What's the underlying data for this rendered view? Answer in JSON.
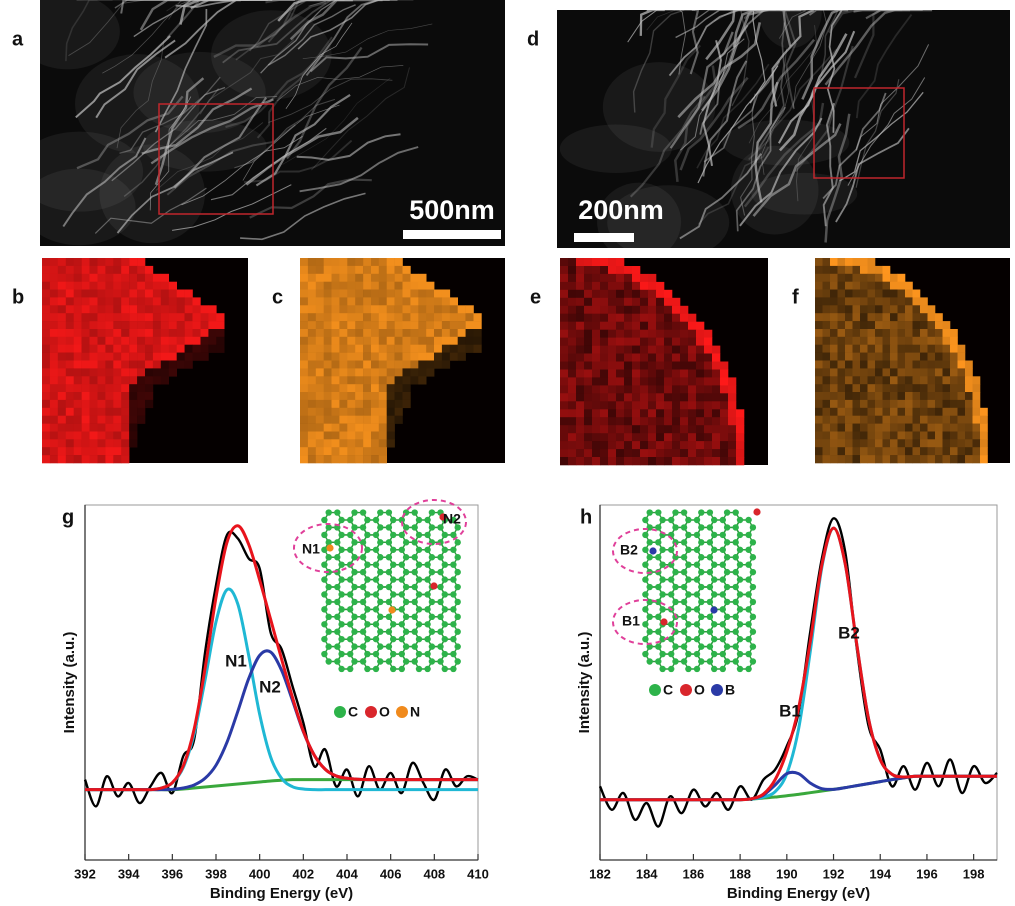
{
  "photos": [
    {
      "label": "a",
      "scale": "500nm"
    },
    {
      "label": "d",
      "scale": "200nm"
    }
  ],
  "maps": [
    {
      "label": "b"
    },
    {
      "label": "c"
    },
    {
      "label": "e"
    },
    {
      "label": "f"
    }
  ],
  "chart_data": [
    {
      "type": "line",
      "label": "g",
      "x_label": "Binding Energy (eV)",
      "y_label": "Intensity (a.u.)",
      "xlim": [
        392,
        410
      ],
      "xticks": [
        392,
        394,
        396,
        398,
        400,
        402,
        404,
        406,
        408,
        410
      ],
      "ylim": [
        0,
        106
      ],
      "x": [
        392,
        392.5,
        393,
        393.5,
        394,
        394.5,
        395,
        395.5,
        396,
        396.5,
        397,
        397.5,
        398,
        398.5,
        399,
        399.5,
        400,
        400.5,
        401,
        401.5,
        402,
        402.5,
        403,
        403.5,
        404,
        404.5,
        405,
        405.5,
        406,
        406.5,
        407,
        407.5,
        408,
        408.5,
        409,
        409.5,
        410
      ],
      "series": [
        {
          "color": "#000000",
          "values": [
            24,
            16,
            25,
            19,
            23,
            17,
            22,
            26,
            20,
            31,
            36,
            62,
            82,
            97,
            96,
            90,
            87,
            68,
            63,
            52,
            41,
            28,
            33,
            22,
            27,
            19,
            28,
            21,
            26,
            20,
            29,
            23,
            18,
            27,
            22,
            25,
            24
          ]
        },
        {
          "color": "#3aa83c",
          "values": [
            21,
            21,
            21,
            21,
            21,
            21,
            21,
            21,
            21,
            21.2,
            21.5,
            21.8,
            22.1,
            22.4,
            22.7,
            23,
            23.3,
            23.6,
            23.8,
            24,
            24,
            24,
            24,
            24,
            24,
            24,
            24,
            24,
            24,
            24,
            24,
            24,
            24,
            24,
            24,
            24,
            24
          ]
        },
        {
          "color": "#1fb8d4",
          "values": [
            21,
            21,
            21,
            21,
            21,
            21,
            21,
            21.5,
            23.0,
            27.6,
            37.7,
            53.8,
            71.1,
            80.7,
            76.4,
            61.0,
            43.5,
            30.8,
            24.4,
            21.9,
            21.2,
            21,
            21,
            21,
            21,
            21,
            21,
            21,
            21,
            21,
            21,
            21,
            21,
            21,
            21,
            21,
            21
          ]
        },
        {
          "color": "#2a3aa6",
          "values": [
            21,
            21,
            21,
            21,
            21,
            21,
            21,
            21,
            21.1,
            21.5,
            22.4,
            24.4,
            28.3,
            35.1,
            44.4,
            54.2,
            61.1,
            62.1,
            56.7,
            47.7,
            38.3,
            31.3,
            27.1,
            25.1,
            24.4,
            24.1,
            24,
            24,
            24,
            24,
            24,
            24,
            24,
            24,
            24,
            24,
            24
          ]
        },
        {
          "color": "#e8141c",
          "values": [
            21,
            21,
            21,
            21,
            21,
            21,
            21,
            21.5,
            23.1,
            28.1,
            39.1,
            57.2,
            78.4,
            94.8,
            99.8,
            94.2,
            83.6,
            71.9,
            60.1,
            48.6,
            38.5,
            31.3,
            27.1,
            25.1,
            24.4,
            24.1,
            24,
            24,
            24,
            24,
            24,
            24,
            24,
            24,
            24,
            24,
            24
          ]
        }
      ],
      "annotations": [
        "N1",
        "N2"
      ],
      "inset": {
        "sites": [
          "N1",
          "N2"
        ],
        "legend": [
          {
            "text": "C",
            "color": "#2db34a"
          },
          {
            "text": "O",
            "color": "#d9262c"
          },
          {
            "text": "N",
            "color": "#f08a1c"
          }
        ]
      }
    },
    {
      "type": "line",
      "label": "h",
      "x_label": "Binding Energy (eV)",
      "y_label": "Intensity (a.u.)",
      "xlim": [
        182,
        199
      ],
      "xticks": [
        182,
        184,
        186,
        188,
        190,
        192,
        194,
        196,
        198
      ],
      "ylim": [
        0,
        106
      ],
      "x": [
        182,
        182.5,
        183,
        183.5,
        184,
        184.5,
        185,
        185.5,
        186,
        186.5,
        187,
        187.5,
        188,
        188.5,
        189,
        189.5,
        190,
        190.5,
        191,
        191.5,
        192,
        192.5,
        193,
        193.5,
        194,
        194.5,
        195,
        195.5,
        196,
        196.5,
        197,
        197.5,
        198,
        198.5,
        199
      ],
      "series": [
        {
          "color": "#000000",
          "values": [
            22,
            15,
            20,
            12,
            17,
            10,
            19,
            14,
            21,
            16,
            20,
            15,
            22,
            18,
            24,
            27,
            34,
            44,
            68,
            90,
            102,
            92,
            63,
            40,
            33,
            22,
            28,
            21,
            29,
            22,
            30,
            20,
            28,
            23,
            26
          ]
        },
        {
          "color": "#3aa83c",
          "values": [
            18,
            18,
            18,
            18,
            18,
            18,
            18,
            18,
            18,
            18,
            18,
            18,
            18,
            18.2,
            18.5,
            18.8,
            19.2,
            19.6,
            20.1,
            20.6,
            21.1,
            21.6,
            22.2,
            22.8,
            23.4,
            24,
            24.5,
            25,
            25,
            25,
            25,
            25,
            25,
            25,
            25
          ]
        },
        {
          "color": "#1fb8d4",
          "values": [
            18,
            18,
            18,
            18,
            18,
            18,
            18,
            18,
            18,
            18,
            18,
            18,
            18,
            18.2,
            18.8,
            20.4,
            25.8,
            39.0,
            62.1,
            87.4,
            99.1,
            88.4,
            64.2,
            42.2,
            30.0,
            25.6,
            24.8,
            25,
            25,
            25,
            25,
            25,
            25,
            25,
            25
          ]
        },
        {
          "color": "#2a3aa6",
          "values": [
            18,
            18,
            18,
            18,
            18,
            18,
            18,
            18,
            18,
            18,
            18,
            18,
            18,
            18.3,
            19.4,
            22.4,
            25.8,
            25.8,
            23.0,
            21.3,
            21.1,
            21.6,
            22.2,
            22.8,
            23.4,
            24,
            24.5,
            25,
            25,
            25,
            25,
            25,
            25,
            25,
            25
          ]
        },
        {
          "color": "#e8141c",
          "values": [
            18,
            18,
            18,
            18,
            18,
            18,
            18,
            18,
            18,
            18,
            18,
            18,
            18,
            18.3,
            19.7,
            24.0,
            32.4,
            45.2,
            65.0,
            88.1,
            99.1,
            88.4,
            64.2,
            42.2,
            30.0,
            25.6,
            24.8,
            25,
            25,
            25,
            25,
            25,
            25,
            25,
            25
          ]
        }
      ],
      "annotations": [
        "B1",
        "B2"
      ],
      "inset": {
        "sites": [
          "B1",
          "B2"
        ],
        "legend": [
          {
            "text": "C",
            "color": "#2db34a"
          },
          {
            "text": "O",
            "color": "#d9262c"
          },
          {
            "text": "B",
            "color": "#2a3aa6"
          }
        ]
      }
    }
  ]
}
